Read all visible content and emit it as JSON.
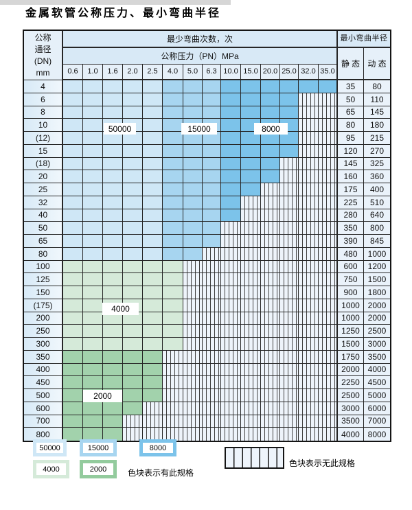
{
  "title": "金属软管公称压力、最小弯曲半径",
  "table": {
    "dn_header": "公称\n通径\n(DN)\nmm",
    "bend_cycles_header": "最少弯曲次数，次",
    "pressure_header": "公称压力（PN）MPa",
    "pressure_columns": [
      "0.6",
      "1.0",
      "1.6",
      "2.0",
      "2.5",
      "4.0",
      "5.0",
      "6.3",
      "10.0",
      "15.0",
      "20.0",
      "25.0",
      "32.0",
      "35.0"
    ],
    "radius_header": "最小弯曲半径",
    "static_header": "静 态",
    "dynamic_header": "动 态",
    "rows": [
      {
        "dn": "4",
        "colored_until": "35.0",
        "palette": "blue",
        "static": "35",
        "dynamic": "80"
      },
      {
        "dn": "6",
        "colored_until": "25.0",
        "palette": "blue",
        "static": "50",
        "dynamic": "110"
      },
      {
        "dn": "8",
        "colored_until": "25.0",
        "palette": "blue",
        "static": "65",
        "dynamic": "145"
      },
      {
        "dn": "10",
        "colored_until": "25.0",
        "palette": "blue",
        "static": "80",
        "dynamic": "180"
      },
      {
        "dn": "(12)",
        "colored_until": "25.0",
        "palette": "blue",
        "static": "95",
        "dynamic": "215"
      },
      {
        "dn": "15",
        "colored_until": "25.0",
        "palette": "blue",
        "static": "120",
        "dynamic": "270"
      },
      {
        "dn": "(18)",
        "colored_until": "20.0",
        "palette": "blue",
        "static": "145",
        "dynamic": "325"
      },
      {
        "dn": "20",
        "colored_until": "20.0",
        "palette": "blue",
        "static": "160",
        "dynamic": "360"
      },
      {
        "dn": "25",
        "colored_until": "15.0",
        "palette": "blue",
        "static": "175",
        "dynamic": "400"
      },
      {
        "dn": "32",
        "colored_until": "10.0",
        "palette": "blue",
        "static": "225",
        "dynamic": "510"
      },
      {
        "dn": "40",
        "colored_until": "10.0",
        "palette": "blue",
        "static": "280",
        "dynamic": "640"
      },
      {
        "dn": "50",
        "colored_until": "6.3",
        "palette": "blue",
        "static": "350",
        "dynamic": "800"
      },
      {
        "dn": "65",
        "colored_until": "6.3",
        "palette": "blue",
        "static": "390",
        "dynamic": "845"
      },
      {
        "dn": "80",
        "colored_until": "5.0",
        "palette": "blue",
        "static": "480",
        "dynamic": "1000"
      },
      {
        "dn": "100",
        "colored_until": "4.0",
        "palette": "green4000",
        "static": "600",
        "dynamic": "1200"
      },
      {
        "dn": "125",
        "colored_until": "4.0",
        "palette": "green4000",
        "static": "750",
        "dynamic": "1500"
      },
      {
        "dn": "150",
        "colored_until": "4.0",
        "palette": "green4000",
        "static": "900",
        "dynamic": "1800"
      },
      {
        "dn": "(175)",
        "colored_until": "4.0",
        "palette": "green4000",
        "static": "1000",
        "dynamic": "2000"
      },
      {
        "dn": "200",
        "colored_until": "4.0",
        "palette": "green4000",
        "static": "1000",
        "dynamic": "2000"
      },
      {
        "dn": "250",
        "colored_until": "4.0",
        "palette": "green4000",
        "static": "1250",
        "dynamic": "2500"
      },
      {
        "dn": "300",
        "colored_until": "4.0",
        "palette": "green4000",
        "static": "1500",
        "dynamic": "3000"
      },
      {
        "dn": "350",
        "colored_until": "2.5",
        "palette": "green2000",
        "static": "1750",
        "dynamic": "3500"
      },
      {
        "dn": "400",
        "colored_until": "2.5",
        "palette": "green2000",
        "static": "2000",
        "dynamic": "4000"
      },
      {
        "dn": "450",
        "colored_until": "2.5",
        "palette": "green2000",
        "static": "2250",
        "dynamic": "4500"
      },
      {
        "dn": "500",
        "colored_until": "2.5",
        "palette": "green2000",
        "static": "2500",
        "dynamic": "5000"
      },
      {
        "dn": "600",
        "colored_until": "2.0",
        "palette": "green2000",
        "static": "3000",
        "dynamic": "6000"
      },
      {
        "dn": "700",
        "colored_until": "1.6",
        "palette": "green2000",
        "static": "3500",
        "dynamic": "7000"
      },
      {
        "dn": "800",
        "colored_until": "1.6",
        "palette": "green2000",
        "static": "4000",
        "dynamic": "8000"
      }
    ]
  },
  "overlays": {
    "b50000": "50000",
    "b15000": "15000",
    "b8000": "8000",
    "g4000": "4000",
    "g2000": "2000"
  },
  "legend": {
    "blocks": [
      {
        "label": "50000",
        "color_key": "band_50000"
      },
      {
        "label": "15000",
        "color_key": "band_15000"
      },
      {
        "label": "8000",
        "color_key": "band_8000"
      },
      {
        "label": "4000",
        "color_key": "band_4000"
      },
      {
        "label": "2000",
        "color_key": "legend_2000"
      }
    ],
    "has_spec_note": "色块表示有此规格",
    "no_spec_note": "色块表示无此规格"
  },
  "colors": {
    "band_50000": "#cfe7f6",
    "band_15000": "#a7d5f0",
    "band_8000": "#7cc3ea",
    "band_4000": "#d5ead9",
    "band_2000": "#a2d2ac",
    "legend_2000": "#93cb9d",
    "hatch_bg": "#eef4fb"
  }
}
